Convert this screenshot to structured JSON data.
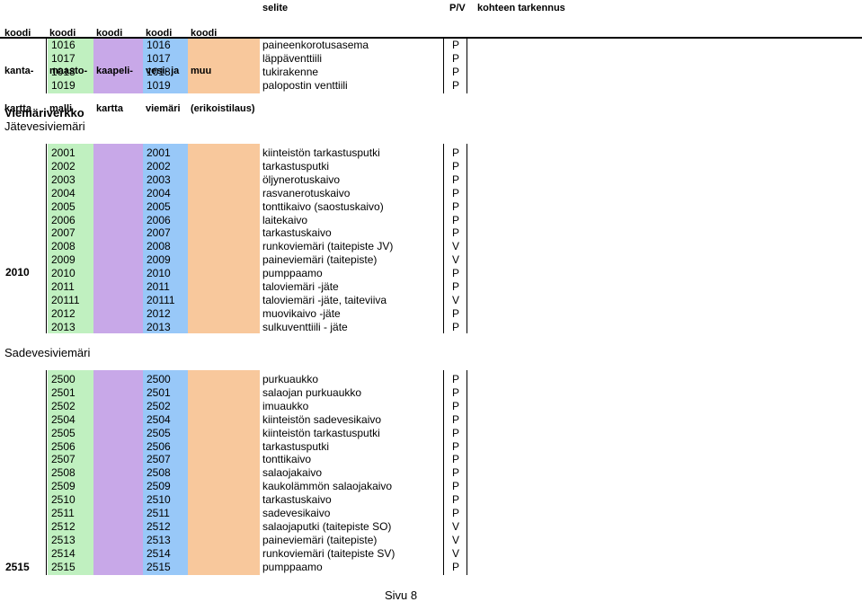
{
  "header": {
    "col1": [
      "koodi",
      "kanta-",
      "kartta"
    ],
    "col2": [
      "koodi",
      "maasto-",
      "malli"
    ],
    "col3": [
      "koodi",
      "kaapeli-",
      "kartta"
    ],
    "col4": [
      "koodi",
      "vesi- ja",
      "viemäri"
    ],
    "col5": [
      "koodi",
      "muu",
      "(erikoistilaus)"
    ],
    "selite": "selite",
    "pv": "P/V",
    "kohteen": "kohteen tarkennus"
  },
  "colors": {
    "maasto": "#c0f0c0",
    "kaapeli": "#c8a8e8",
    "vesi": "#98c8f8",
    "muu": "#f8c89c"
  },
  "section0": {
    "rows": [
      {
        "code": "1016",
        "desc": "paineenkorotusasema",
        "pv": "P"
      },
      {
        "code": "1017",
        "desc": "läppäventtiili",
        "pv": "P"
      },
      {
        "code": "1018",
        "desc": "tukirakenne",
        "pv": "P"
      },
      {
        "code": "1019",
        "desc": "palopostin venttiili",
        "pv": "P"
      }
    ]
  },
  "section1": {
    "title": "Viemäriverkko",
    "subtitle": "Jätevesiviemäri",
    "kanta": "2010",
    "rows": [
      {
        "code": "2001",
        "desc": "kiinteistön tarkastusputki",
        "pv": "P"
      },
      {
        "code": "2002",
        "desc": "tarkastusputki",
        "pv": "P"
      },
      {
        "code": "2003",
        "desc": "öljynerotuskaivo",
        "pv": "P"
      },
      {
        "code": "2004",
        "desc": "rasvanerotuskaivo",
        "pv": "P"
      },
      {
        "code": "2005",
        "desc": "tonttikaivo (saostuskaivo)",
        "pv": "P"
      },
      {
        "code": "2006",
        "desc": "laitekaivo",
        "pv": "P"
      },
      {
        "code": "2007",
        "desc": "tarkastuskaivo",
        "pv": "P"
      },
      {
        "code": "2008",
        "desc": "runkoviemäri (taitepiste JV)",
        "pv": "V"
      },
      {
        "code": "2009",
        "desc": "paineviemäri (taitepiste)",
        "pv": "V"
      },
      {
        "code": "2010",
        "desc": "pumppaamo",
        "pv": "P"
      },
      {
        "code": "2011",
        "desc": "taloviemäri -jäte",
        "pv": "P"
      },
      {
        "code": "20111",
        "desc": "taloviemäri -jäte, taiteviiva",
        "pv": "V"
      },
      {
        "code": "2012",
        "desc": "muovikaivo -jäte",
        "pv": "P"
      },
      {
        "code": "2013",
        "desc": "sulkuventtiili - jäte",
        "pv": "P"
      }
    ]
  },
  "section2": {
    "subtitle": "Sadevesiviemäri",
    "kanta": "2515",
    "rows": [
      {
        "code": "2500",
        "desc": "purkuaukko",
        "pv": "P"
      },
      {
        "code": "2501",
        "desc": "salaojan purkuaukko",
        "pv": "P"
      },
      {
        "code": "2502",
        "desc": "imuaukko",
        "pv": "P"
      },
      {
        "code": "2504",
        "desc": "kiinteistön sadevesikaivo",
        "pv": "P"
      },
      {
        "code": "2505",
        "desc": "kiinteistön tarkastusputki",
        "pv": "P"
      },
      {
        "code": "2506",
        "desc": "tarkastusputki",
        "pv": "P"
      },
      {
        "code": "2507",
        "desc": "tonttikaivo",
        "pv": "P"
      },
      {
        "code": "2508",
        "desc": "salaojakaivo",
        "pv": "P"
      },
      {
        "code": "2509",
        "desc": "kaukolämmön salaojakaivo",
        "pv": "P"
      },
      {
        "code": "2510",
        "desc": "tarkastuskaivo",
        "pv": "P"
      },
      {
        "code": "2511",
        "desc": "sadevesikaivo",
        "pv": "P"
      },
      {
        "code": "2512",
        "desc": "salaojaputki (taitepiste SO)",
        "pv": "V"
      },
      {
        "code": "2513",
        "desc": "paineviemäri (taitepiste)",
        "pv": "V"
      },
      {
        "code": "2514",
        "desc": "runkoviemäri (taitepiste SV)",
        "pv": "V"
      },
      {
        "code": "2515",
        "desc": "pumppaamo",
        "pv": "P"
      }
    ]
  },
  "footer": {
    "page": "Sivu 8"
  }
}
